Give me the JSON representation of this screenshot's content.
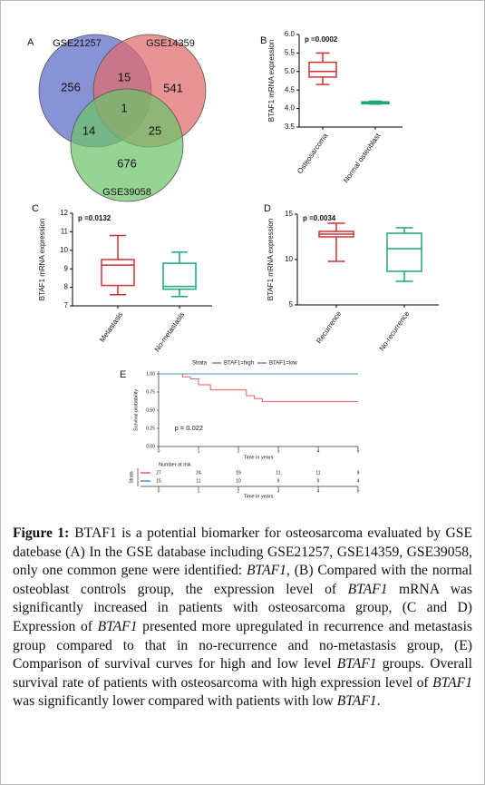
{
  "chart_data": [
    {
      "type": "venn",
      "panel": "A",
      "sets": [
        {
          "name": "GSE21257",
          "color": "#5a69c6"
        },
        {
          "name": "GSE14359",
          "color": "#e06b6b"
        },
        {
          "name": "GSE39058",
          "color": "#6cc46a"
        }
      ],
      "counts": {
        "A": 256,
        "AB": 15,
        "B": 541,
        "ABC": 1,
        "AC": 14,
        "BC": 25,
        "C": 676
      }
    },
    {
      "type": "box",
      "panel": "B",
      "ylabel": "BTAF1 mRNA expression",
      "annotation": "p =0.0002",
      "categories": [
        "Osteosarcoma",
        "Normal osteoblast"
      ],
      "colors": [
        "#cc3333",
        "#1fa67a"
      ],
      "stats": [
        {
          "min": 4.65,
          "q1": 4.85,
          "median": 5.0,
          "q3": 5.25,
          "max": 5.5
        },
        {
          "min": 4.12,
          "q1": 4.13,
          "median": 4.15,
          "q3": 4.18,
          "max": 4.2
        }
      ],
      "ylim": [
        3.5,
        6.0
      ],
      "yticks": [
        3.5,
        {
          "value": 4,
          "label": "4.0"
        },
        4.5,
        {
          "value": 5,
          "label": "5.0"
        },
        5.5,
        {
          "value": 6,
          "label": "6.0"
        }
      ]
    },
    {
      "type": "box",
      "panel": "C",
      "ylabel": "BTAF1 mRNA expression",
      "annotation": "p =0.0132",
      "categories": [
        "Metastasis",
        "No-metastasis"
      ],
      "colors": [
        "#cc3333",
        "#1fa67a"
      ],
      "stats": [
        {
          "min": 7.6,
          "q1": 8.1,
          "median": 9.2,
          "q3": 9.5,
          "max": 10.8
        },
        {
          "min": 7.5,
          "q1": 7.9,
          "median": 8.05,
          "q3": 9.3,
          "max": 9.9
        }
      ],
      "ylim": [
        7,
        12
      ],
      "yticks": [
        7,
        8,
        9,
        10,
        11,
        12
      ]
    },
    {
      "type": "box",
      "panel": "D",
      "ylabel": "BTAF1 mRNA expression",
      "annotation": "p =0.0034",
      "categories": [
        "Recurrence",
        "No-recurrence"
      ],
      "colors": [
        "#cc3333",
        "#1fa67a"
      ],
      "stats": [
        {
          "min": 9.8,
          "q1": 12.5,
          "median": 12.8,
          "q3": 13.1,
          "max": 14.0
        },
        {
          "min": 7.6,
          "q1": 8.7,
          "median": 11.2,
          "q3": 12.9,
          "max": 13.5
        }
      ],
      "ylim": [
        5,
        15
      ],
      "yticks": [
        5,
        10,
        15
      ]
    },
    {
      "type": "survival",
      "panel": "E",
      "legend_title": "Strata",
      "xlabel": "Time in years",
      "ylabel": "Survival probability",
      "annotation": "p = 0.022",
      "series": [
        {
          "name": "BTAF1=high",
          "color": "#e06060",
          "x": [
            0,
            0.6,
            0.8,
            1.0,
            1.3,
            2.2,
            2.4,
            2.6,
            5
          ],
          "values": [
            1.0,
            0.96,
            0.93,
            0.85,
            0.78,
            0.7,
            0.66,
            0.62,
            0.62
          ]
        },
        {
          "name": "BTAF1=low",
          "color": "#4a8fd6",
          "x": [
            0,
            5
          ],
          "values": [
            1.0,
            1.0
          ]
        }
      ],
      "xlim": [
        0,
        5
      ],
      "xticks": [
        0,
        1,
        2,
        3,
        4,
        5
      ],
      "ylim": [
        0,
        1
      ],
      "yticks": [
        {
          "value": 0,
          "label": "0.00"
        },
        {
          "value": 0.25,
          "label": "0.25"
        },
        {
          "value": 0.5,
          "label": "0.50"
        },
        {
          "value": 0.75,
          "label": "0.75"
        },
        {
          "value": 1,
          "label": "1.00"
        }
      ],
      "risk_table": {
        "title": "Number at risk",
        "label": "Strata",
        "rows": [
          [
            27,
            24,
            19,
            11,
            11,
            9
          ],
          [
            15,
            11,
            10,
            9,
            9,
            4
          ]
        ]
      }
    }
  ],
  "caption": {
    "label": "Figure 1:",
    "runs": [
      {
        "text": "BTAF1 is a potential biomarker for osteosarcoma evaluated by GSE datebase (A) In the GSE database including GSE21257, GSE14359, GSE39058, only one common gene were identified: ",
        "italic": false
      },
      {
        "text": "BTAF1",
        "italic": true
      },
      {
        "text": ", (B) Compared with the normal osteoblast controls group, the expression level of ",
        "italic": false
      },
      {
        "text": "BTAF1",
        "italic": true
      },
      {
        "text": " mRNA was significantly increased in patients with osteosarcoma group, (C and D) Expression of ",
        "italic": false
      },
      {
        "text": "BTAF1",
        "italic": true
      },
      {
        "text": " presented more upregulated in recurrence and metastasis group compared to that in no-recurrence and no-metastasis group, (E) Comparison of survival curves for high and low level ",
        "italic": false
      },
      {
        "text": "BTAF1",
        "italic": true
      },
      {
        "text": " groups. Overall survival rate of patients with osteosarcoma with high expression level of ",
        "italic": false
      },
      {
        "text": "BTAF1",
        "italic": true
      },
      {
        "text": " was significantly lower compared with patients with low ",
        "italic": false
      },
      {
        "text": "BTAF1",
        "italic": true
      },
      {
        "text": ".",
        "italic": false
      }
    ]
  }
}
